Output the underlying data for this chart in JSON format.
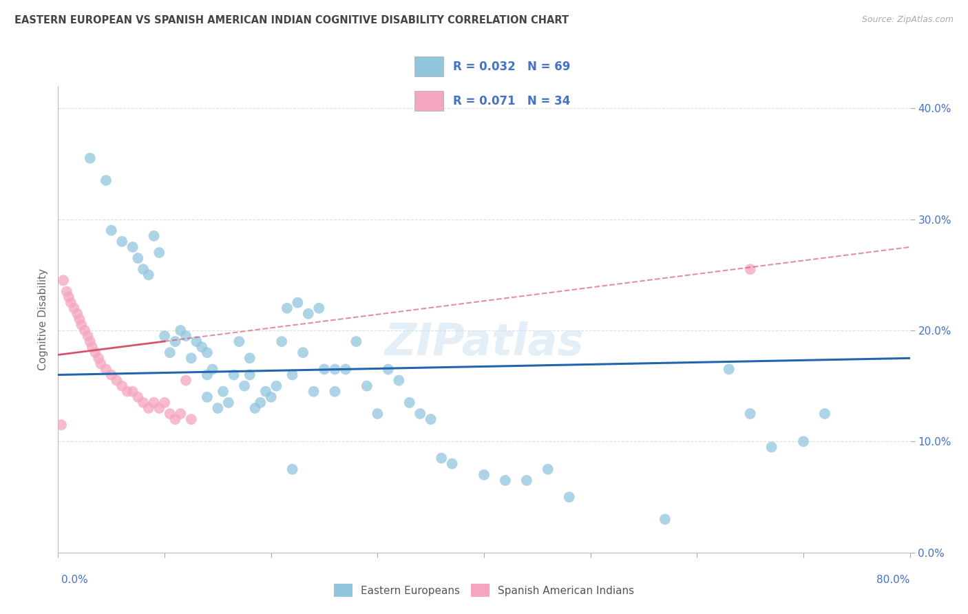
{
  "title": "EASTERN EUROPEAN VS SPANISH AMERICAN INDIAN COGNITIVE DISABILITY CORRELATION CHART",
  "source": "Source: ZipAtlas.com",
  "ylabel": "Cognitive Disability",
  "legend1_r": "0.032",
  "legend1_n": "69",
  "legend2_r": "0.071",
  "legend2_n": "34",
  "legend1_label": "Eastern Europeans",
  "legend2_label": "Spanish American Indians",
  "blue_scatter_color": "#92c5de",
  "pink_scatter_color": "#f4a6be",
  "blue_line_color": "#2166ac",
  "pink_line_color": "#d6536d",
  "axis_tick_color": "#4472c4",
  "legend_text_color": "#4472c4",
  "title_color": "#444444",
  "grid_color": "#dddddd",
  "xlim": [
    0,
    80
  ],
  "ylim": [
    0,
    42
  ],
  "xticks": [
    0,
    10,
    20,
    30,
    40,
    50,
    60,
    70,
    80
  ],
  "yticks": [
    0,
    10,
    20,
    30,
    40
  ],
  "blue_regression_start_y": 16.0,
  "blue_regression_end_y": 17.5,
  "pink_regression_start_y": 17.8,
  "pink_regression_end_y": 27.5,
  "pink_solid_end_x": 10,
  "eastern_x": [
    3.0,
    4.5,
    5.0,
    6.0,
    7.0,
    7.5,
    8.0,
    8.5,
    9.0,
    9.5,
    10.0,
    10.5,
    11.0,
    11.5,
    12.0,
    12.5,
    13.0,
    13.5,
    14.0,
    14.0,
    14.5,
    15.0,
    15.5,
    16.0,
    16.5,
    17.0,
    17.5,
    18.0,
    18.5,
    19.0,
    19.5,
    20.0,
    20.5,
    21.0,
    21.5,
    22.0,
    22.5,
    23.0,
    23.5,
    24.0,
    24.5,
    25.0,
    26.0,
    27.0,
    28.0,
    29.0,
    30.0,
    31.0,
    32.0,
    33.0,
    34.0,
    35.0,
    36.0,
    37.0,
    40.0,
    42.0,
    44.0,
    46.0,
    48.0,
    57.0,
    63.0,
    65.0,
    67.0,
    70.0,
    72.0,
    14.0,
    18.0,
    22.0,
    26.0
  ],
  "eastern_y": [
    35.5,
    33.5,
    29.0,
    28.0,
    27.5,
    26.5,
    25.5,
    25.0,
    28.5,
    27.0,
    19.5,
    18.0,
    19.0,
    20.0,
    19.5,
    17.5,
    19.0,
    18.5,
    18.0,
    14.0,
    16.5,
    13.0,
    14.5,
    13.5,
    16.0,
    19.0,
    15.0,
    17.5,
    13.0,
    13.5,
    14.5,
    14.0,
    15.0,
    19.0,
    22.0,
    16.0,
    22.5,
    18.0,
    21.5,
    14.5,
    22.0,
    16.5,
    14.5,
    16.5,
    19.0,
    15.0,
    12.5,
    16.5,
    15.5,
    13.5,
    12.5,
    12.0,
    8.5,
    8.0,
    7.0,
    6.5,
    6.5,
    7.5,
    5.0,
    3.0,
    16.5,
    12.5,
    9.5,
    10.0,
    12.5,
    16.0,
    16.0,
    7.5,
    16.5
  ],
  "spanish_x": [
    0.5,
    0.8,
    1.0,
    1.2,
    1.5,
    1.8,
    2.0,
    2.2,
    2.5,
    2.8,
    3.0,
    3.2,
    3.5,
    3.8,
    4.0,
    4.5,
    5.0,
    5.5,
    6.0,
    6.5,
    7.0,
    7.5,
    8.0,
    8.5,
    9.0,
    9.5,
    10.0,
    10.5,
    11.0,
    11.5,
    12.0,
    12.5,
    0.3,
    65.0
  ],
  "spanish_y": [
    24.5,
    23.5,
    23.0,
    22.5,
    22.0,
    21.5,
    21.0,
    20.5,
    20.0,
    19.5,
    19.0,
    18.5,
    18.0,
    17.5,
    17.0,
    16.5,
    16.0,
    15.5,
    15.0,
    14.5,
    14.5,
    14.0,
    13.5,
    13.0,
    13.5,
    13.0,
    13.5,
    12.5,
    12.0,
    12.5,
    15.5,
    12.0,
    11.5,
    25.5
  ]
}
